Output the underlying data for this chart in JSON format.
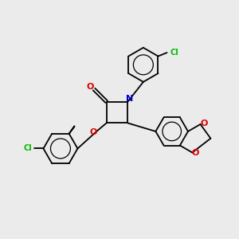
{
  "background_color": "#ebebeb",
  "bond_color": "#000000",
  "atom_colors": {
    "O": "#dd0000",
    "N": "#0000cc",
    "Cl": "#00bb00",
    "C": "#000000"
  },
  "figsize": [
    3.0,
    3.0
  ],
  "dpi": 100,
  "xlim": [
    0,
    10
  ],
  "ylim": [
    0,
    10
  ]
}
